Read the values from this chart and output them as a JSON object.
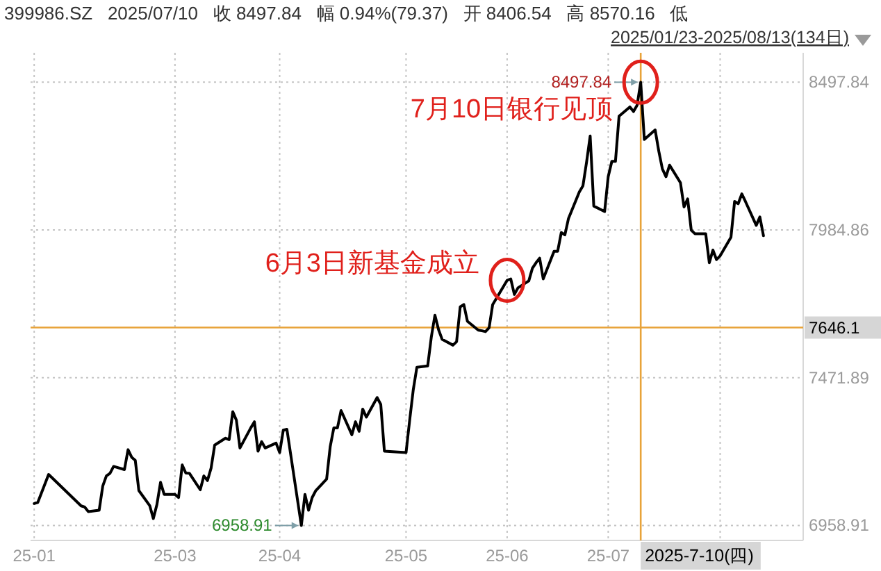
{
  "chart_data": {
    "type": "line",
    "title": "399986.SZ   2025/07/10   收 8497.84   幅 0.94%(79.37)   开 8406.54   高 8570.16   低",
    "subtitle": "2025/01/23-2025/08/13(134日)",
    "x": [
      "2025-01-23",
      "2025-01-24",
      "2025-01-27",
      "2025-02-05",
      "2025-02-06",
      "2025-02-07",
      "2025-02-10",
      "2025-02-11",
      "2025-02-12",
      "2025-02-13",
      "2025-02-14",
      "2025-02-17",
      "2025-02-18",
      "2025-02-19",
      "2025-02-20",
      "2025-02-21",
      "2025-02-24",
      "2025-02-25",
      "2025-02-26",
      "2025-02-27",
      "2025-02-28",
      "2025-03-03",
      "2025-03-04",
      "2025-03-05",
      "2025-03-06",
      "2025-03-07",
      "2025-03-10",
      "2025-03-11",
      "2025-03-12",
      "2025-03-13",
      "2025-03-14",
      "2025-03-17",
      "2025-03-18",
      "2025-03-19",
      "2025-03-20",
      "2025-03-21",
      "2025-03-24",
      "2025-03-25",
      "2025-03-26",
      "2025-03-27",
      "2025-03-28",
      "2025-03-31",
      "2025-04-01",
      "2025-04-02",
      "2025-04-03",
      "2025-04-07",
      "2025-04-08",
      "2025-04-09",
      "2025-04-10",
      "2025-04-11",
      "2025-04-14",
      "2025-04-15",
      "2025-04-16",
      "2025-04-17",
      "2025-04-18",
      "2025-04-21",
      "2025-04-22",
      "2025-04-23",
      "2025-04-24",
      "2025-04-25",
      "2025-04-28",
      "2025-04-29",
      "2025-04-30",
      "2025-05-06",
      "2025-05-07",
      "2025-05-08",
      "2025-05-09",
      "2025-05-12",
      "2025-05-13",
      "2025-05-14",
      "2025-05-15",
      "2025-05-16",
      "2025-05-19",
      "2025-05-20",
      "2025-05-21",
      "2025-05-22",
      "2025-05-23",
      "2025-05-26",
      "2025-05-27",
      "2025-05-28",
      "2025-05-29",
      "2025-05-30",
      "2025-06-03",
      "2025-06-04",
      "2025-06-05",
      "2025-06-06",
      "2025-06-09",
      "2025-06-10",
      "2025-06-11",
      "2025-06-12",
      "2025-06-13",
      "2025-06-16",
      "2025-06-17",
      "2025-06-18",
      "2025-06-19",
      "2025-06-20",
      "2025-06-23",
      "2025-06-24",
      "2025-06-25",
      "2025-06-26",
      "2025-06-27",
      "2025-06-30",
      "2025-07-01",
      "2025-07-02",
      "2025-07-03",
      "2025-07-04",
      "2025-07-07",
      "2025-07-08",
      "2025-07-09",
      "2025-07-10",
      "2025-07-11",
      "2025-07-14",
      "2025-07-15",
      "2025-07-16",
      "2025-07-17",
      "2025-07-18",
      "2025-07-21",
      "2025-07-22",
      "2025-07-23",
      "2025-07-24",
      "2025-07-25",
      "2025-07-28",
      "2025-07-29",
      "2025-07-30",
      "2025-07-31",
      "2025-08-01",
      "2025-08-04",
      "2025-08-05",
      "2025-08-06",
      "2025-08-07",
      "2025-08-08",
      "2025-08-11",
      "2025-08-12",
      "2025-08-13"
    ],
    "series": [
      {
        "color": "#000000",
        "values": [
          7035,
          7039,
          7136,
          7027,
          7023,
          7007,
          7012,
          7096,
          7131,
          7140,
          7164,
          7153,
          7222,
          7196,
          7185,
          7080,
          7028,
          6983,
          7032,
          7109,
          7067,
          7067,
          7056,
          7169,
          7141,
          7140,
          7083,
          7131,
          7115,
          7158,
          7238,
          7262,
          7257,
          7354,
          7325,
          7228,
          7298,
          7319,
          7217,
          7250,
          7228,
          7245,
          7212,
          7290,
          7293,
          6958.91,
          7067,
          7012,
          7056,
          7080,
          7120,
          7233,
          7298,
          7298,
          7358,
          7274,
          7319,
          7286,
          7363,
          7335,
          7403,
          7379,
          7217,
          7212,
          7324,
          7430,
          7508,
          7513,
          7613,
          7689,
          7639,
          7605,
          7585,
          7597,
          7718,
          7726,
          7668,
          7637,
          7635,
          7632,
          7645,
          7726,
          7810,
          7815,
          7761,
          7784,
          7808,
          7852,
          7871,
          7887,
          7815,
          7911,
          7911,
          7976,
          7968,
          8025,
          8117,
          8138,
          8220,
          8311,
          8068,
          8049,
          8170,
          8223,
          8223,
          8380,
          8412,
          8396,
          8418,
          8497.84,
          8299,
          8332,
          8259,
          8197,
          8170,
          8210,
          8149,
          8065,
          8093,
          7984,
          7972,
          7972,
          7871,
          7915,
          7882,
          7895,
          7960,
          8084,
          8076,
          8110,
          8084,
          8001,
          8030,
          7965
        ],
        "value_labels": [
          null,
          null,
          null,
          null,
          null,
          null,
          null,
          null,
          null,
          null,
          null,
          null,
          null,
          null,
          null,
          null,
          null,
          null,
          null,
          null,
          null,
          null,
          null,
          null,
          null,
          null,
          null,
          null,
          null,
          null,
          null,
          null,
          null,
          null,
          null,
          null,
          null,
          null,
          null,
          null,
          null,
          null,
          null,
          null,
          null,
          "6958.91",
          null,
          null,
          null,
          null,
          null,
          null,
          null,
          null,
          null,
          null,
          null,
          null,
          null,
          null,
          null,
          null,
          null,
          null,
          null,
          null,
          null,
          null,
          null,
          null,
          null,
          null,
          null,
          null,
          null,
          null,
          null,
          null,
          null,
          null,
          null,
          null,
          null,
          null,
          null,
          null,
          null,
          null,
          null,
          null,
          null,
          null,
          null,
          null,
          null,
          null,
          null,
          null,
          null,
          null,
          null,
          null,
          null,
          null,
          null,
          null,
          null,
          null,
          null,
          "8497.84",
          null,
          null,
          null,
          null,
          null,
          null,
          null,
          null,
          null,
          null,
          null,
          null,
          null,
          null,
          null,
          null,
          null,
          null,
          null,
          null,
          null,
          null,
          null,
          null
        ]
      }
    ],
    "annotations": [
      {
        "text": "6月3日新基金成立",
        "x": "2025-06-03",
        "y": 7810
      },
      {
        "text": "7月10日银行见顶",
        "x": "2025-07-10",
        "y": 8497.84
      }
    ],
    "ref_lines": [
      {
        "axis": "x",
        "value": "2025-07-10",
        "label": "2025-7-10(四)",
        "color": "#e8a33a"
      },
      {
        "axis": "y",
        "value": 7646.1,
        "label": "7646.1",
        "color": "#e8a33a"
      }
    ],
    "xlim": [
      "2025-01-22",
      "2025-08-24"
    ],
    "xticks": [
      {
        "value": "2025-01-23",
        "label": "25-01"
      },
      {
        "value": "2025-03-03",
        "label": "25-03"
      },
      {
        "value": "2025-04-01",
        "label": "25-04"
      },
      {
        "value": "2025-05-06",
        "label": "25-05"
      },
      {
        "value": "2025-06-03",
        "label": "25-06"
      },
      {
        "value": "2025-07-01",
        "label": "25-07"
      },
      {
        "value": "2025-08-01",
        "label": null
      }
    ],
    "ylim": [
      6907,
      8600
    ],
    "yticks": [
      6958.91,
      7471.89,
      7984.86,
      8497.84
    ],
    "grid": true,
    "line_style": "solid"
  }
}
